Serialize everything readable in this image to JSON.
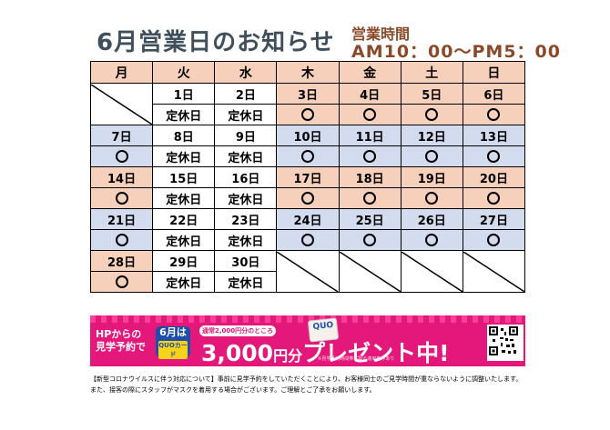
{
  "title": "6月営業日のお知らせ",
  "hours": {
    "label": "営業時間",
    "time": "AM10：00～PM5：00"
  },
  "weekdays": [
    "月",
    "火",
    "水",
    "木",
    "金",
    "土",
    "日"
  ],
  "open_mark": "〇",
  "closed_label": "定休日",
  "weeks": [
    {
      "dates": [
        "",
        "1日",
        "2日",
        "3日",
        "4日",
        "5日",
        "6日"
      ],
      "status": [
        "",
        "定休日",
        "定休日",
        "open",
        "open",
        "open",
        "open"
      ]
    },
    {
      "dates": [
        "7日",
        "8日",
        "9日",
        "10日",
        "11日",
        "12日",
        "13日"
      ],
      "status": [
        "open",
        "定休日",
        "定休日",
        "open",
        "open",
        "open",
        "open"
      ]
    },
    {
      "dates": [
        "14日",
        "15日",
        "16日",
        "17日",
        "18日",
        "19日",
        "20日"
      ],
      "status": [
        "open",
        "定休日",
        "定休日",
        "open",
        "open",
        "open",
        "open"
      ]
    },
    {
      "dates": [
        "21日",
        "22日",
        "23日",
        "24日",
        "25日",
        "26日",
        "27日"
      ],
      "status": [
        "open",
        "定休日",
        "定休日",
        "open",
        "open",
        "open",
        "open"
      ]
    },
    {
      "dates": [
        "28日",
        "29日",
        "30日",
        "",
        "",
        "",
        ""
      ],
      "status": [
        "open",
        "定休日",
        "定休日",
        "",
        "",
        "",
        ""
      ]
    }
  ],
  "banner": {
    "hp_line1": "HPからの",
    "hp_line2": "見学予約で",
    "month_badge": "6月は",
    "quo_card": "QUOカード",
    "notice": "通常2,000円分のところ",
    "quo_logo": "QUO",
    "present_amount": "3,000",
    "present_unit": "円分",
    "present_text": "プレゼント中!",
    "fineprint": "※見学予約時間帯に限る適用条件あり"
  },
  "footer": {
    "line1": "【新型コロナウイルスに伴う対応について】事前に見学予約をしていただくことにより、お客様同士のご見学時間が重ならないように調整いたします。",
    "line2": "また、接客の際にスタッフがマスクを着用する場合がございます。ご理解とご了承をお願いします。"
  },
  "colors": {
    "pink": "#f6d0bb",
    "blue": "#d3dbef",
    "banner": "#e4177a",
    "title": "#3f4f5c",
    "hours": "#8a4a2a"
  }
}
